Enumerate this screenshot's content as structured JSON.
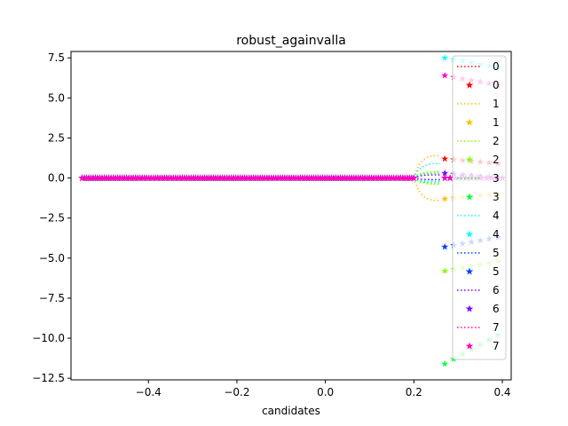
{
  "chart_data": {
    "type": "line",
    "title": "robust_againvalla",
    "xlabel": "candidates",
    "ylabel": "",
    "xlim": [
      -0.575,
      0.42
    ],
    "ylim": [
      -12.6,
      7.9
    ],
    "xticks": [
      -0.4,
      -0.2,
      0.0,
      0.2,
      0.4
    ],
    "xtick_labels": [
      "−0.4",
      "−0.2",
      "0.0",
      "0.2",
      "0.4"
    ],
    "yticks": [
      7.5,
      5.0,
      2.5,
      0.0,
      -2.5,
      -5.0,
      -7.5,
      -10.0,
      -12.5
    ],
    "ytick_labels": [
      "7.5",
      "5.0",
      "2.5",
      "0.0",
      "−2.5",
      "−5.0",
      "−7.5",
      "−10.0",
      "−12.5"
    ],
    "grid": false,
    "legend_position": "right",
    "x_start": -0.55,
    "x_end": 0.4,
    "series": [
      {
        "name": "0",
        "color": "#ff0000",
        "points": [
          [
            0.27,
            1.2
          ],
          [
            0.29,
            1.15
          ],
          [
            0.31,
            1.1
          ],
          [
            0.33,
            1.05
          ],
          [
            0.35,
            1.0
          ],
          [
            0.37,
            0.95
          ],
          [
            0.39,
            0.9
          ]
        ],
        "curve_upper": 0.0,
        "curve_lower": 0.0
      },
      {
        "name": "1",
        "color": "#ffbf00",
        "points": [
          [
            0.27,
            -1.3
          ],
          [
            0.29,
            -1.25
          ],
          [
            0.31,
            -1.2
          ],
          [
            0.33,
            -1.15
          ],
          [
            0.35,
            -1.1
          ],
          [
            0.37,
            -1.05
          ],
          [
            0.39,
            -1.0
          ]
        ],
        "curve_upper": 1.4,
        "curve_lower": -1.4
      },
      {
        "name": "2",
        "color": "#80ff00",
        "points": [
          [
            0.27,
            -5.8
          ],
          [
            0.29,
            -5.7
          ],
          [
            0.31,
            -5.6
          ],
          [
            0.33,
            -5.5
          ],
          [
            0.35,
            -5.4
          ],
          [
            0.37,
            -5.3
          ],
          [
            0.39,
            -5.2
          ]
        ],
        "curve_upper": 0.4,
        "curve_lower": -0.4
      },
      {
        "name": "3",
        "color": "#00ff40",
        "points": [
          [
            0.27,
            -11.6
          ],
          [
            0.29,
            -11.3
          ],
          [
            0.31,
            -11.0
          ],
          [
            0.33,
            -10.7
          ],
          [
            0.35,
            -10.4
          ],
          [
            0.37,
            -10.1
          ],
          [
            0.39,
            -9.8
          ]
        ],
        "curve_upper": 0.3,
        "curve_lower": -0.3
      },
      {
        "name": "4",
        "color": "#00ffff",
        "points": [
          [
            0.27,
            7.5
          ],
          [
            0.29,
            7.4
          ],
          [
            0.31,
            7.3
          ],
          [
            0.33,
            7.2
          ],
          [
            0.35,
            7.1
          ],
          [
            0.37,
            7.0
          ],
          [
            0.39,
            6.9
          ]
        ],
        "curve_upper": 0.9,
        "curve_lower": -0.2
      },
      {
        "name": "5",
        "color": "#0040ff",
        "points": [
          [
            0.27,
            -4.3
          ],
          [
            0.29,
            -4.2
          ],
          [
            0.31,
            -4.1
          ],
          [
            0.33,
            -4.0
          ],
          [
            0.35,
            -3.9
          ],
          [
            0.37,
            -3.8
          ],
          [
            0.39,
            -3.7
          ]
        ],
        "curve_upper": 0.0,
        "curve_lower": 0.0
      },
      {
        "name": "6",
        "color": "#7f00ff",
        "points": [
          [
            0.27,
            0.3
          ],
          [
            0.29,
            0.25
          ],
          [
            0.31,
            0.2
          ],
          [
            0.33,
            0.15
          ],
          [
            0.35,
            0.1
          ],
          [
            0.37,
            0.05
          ],
          [
            0.39,
            0.0
          ]
        ],
        "curve_upper": 0.2,
        "curve_lower": -0.1
      },
      {
        "name": "7",
        "color": "#ff00bf",
        "points": [
          [
            0.27,
            6.4
          ],
          [
            0.29,
            6.3
          ],
          [
            0.31,
            6.2
          ],
          [
            0.33,
            6.1
          ],
          [
            0.35,
            6.0
          ],
          [
            0.37,
            5.9
          ],
          [
            0.39,
            5.8
          ]
        ],
        "curve_upper": 0.0,
        "curve_lower": 0.0
      }
    ]
  }
}
